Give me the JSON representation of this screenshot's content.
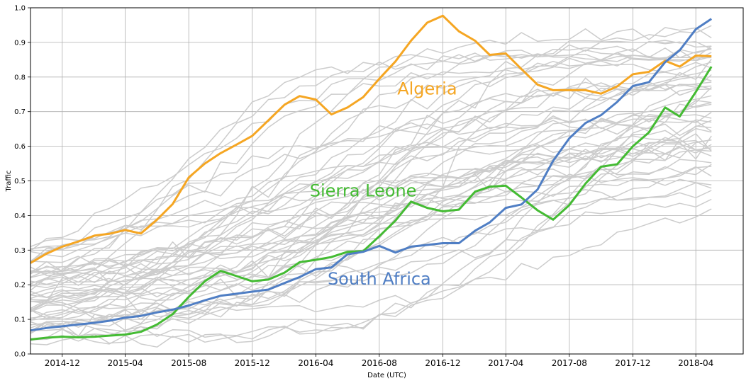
{
  "chart_data": {
    "type": "line",
    "xlabel": "Date (UTC)",
    "ylabel": "Traffic",
    "xlim": [
      "2014-10-01",
      "2018-07-01"
    ],
    "ylim": [
      0,
      1.0
    ],
    "grid": true,
    "x_ticks": [
      "2014-12",
      "2015-04",
      "2015-08",
      "2015-12",
      "2016-04",
      "2016-08",
      "2016-12",
      "2017-04",
      "2017-08",
      "2017-12",
      "2018-04"
    ],
    "y_ticks": [
      "0.0",
      "0.1",
      "0.2",
      "0.3",
      "0.4",
      "0.5",
      "0.6",
      "0.7",
      "0.8",
      "0.9",
      "1.0"
    ],
    "highlight_series": [
      {
        "name": "Algeria",
        "color": "#f5a623",
        "values": [
          0.263,
          0.29,
          0.31,
          0.325,
          0.342,
          0.347,
          0.358,
          0.348,
          0.388,
          0.433,
          0.51,
          0.55,
          0.58,
          0.605,
          0.63,
          0.675,
          0.72,
          0.745,
          0.735,
          0.692,
          0.712,
          0.742,
          0.795,
          0.845,
          0.905,
          0.957,
          0.977,
          0.932,
          0.905,
          0.864,
          0.868,
          0.823,
          0.778,
          0.762,
          0.762,
          0.762,
          0.752,
          0.773,
          0.808,
          0.815,
          0.847,
          0.83,
          0.862,
          0.86
        ],
        "label": "Algeria",
        "label_at": [
          "2016-11-01",
          0.75
        ]
      },
      {
        "name": "Sierra Leone",
        "color": "#44bb33",
        "values": [
          0.042,
          0.047,
          0.05,
          0.048,
          0.05,
          0.053,
          0.056,
          0.064,
          0.085,
          0.115,
          0.165,
          0.21,
          0.24,
          0.225,
          0.21,
          0.215,
          0.235,
          0.265,
          0.272,
          0.28,
          0.295,
          0.297,
          0.34,
          0.385,
          0.44,
          0.422,
          0.412,
          0.417,
          0.469,
          0.483,
          0.486,
          0.452,
          0.415,
          0.388,
          0.43,
          0.492,
          0.541,
          0.548,
          0.6,
          0.64,
          0.712,
          0.686,
          0.757,
          0.83
        ],
        "label": "Sierra Leone",
        "label_at": [
          "2016-07-01",
          0.455
        ]
      },
      {
        "name": "South Africa",
        "color": "#4f7ec4",
        "values": [
          0.068,
          0.075,
          0.08,
          0.085,
          0.09,
          0.096,
          0.105,
          0.11,
          0.12,
          0.128,
          0.14,
          0.155,
          0.168,
          0.174,
          0.18,
          0.186,
          0.205,
          0.222,
          0.245,
          0.25,
          0.288,
          0.295,
          0.312,
          0.293,
          0.31,
          0.315,
          0.32,
          0.32,
          0.356,
          0.38,
          0.422,
          0.432,
          0.475,
          0.558,
          0.623,
          0.667,
          0.69,
          0.728,
          0.774,
          0.785,
          0.843,
          0.877,
          0.938,
          0.968
        ],
        "label": "South Africa",
        "label_at": [
          "2016-08-01",
          0.2
        ]
      }
    ],
    "background_series_count": 50,
    "background_color": "#cccccc"
  }
}
